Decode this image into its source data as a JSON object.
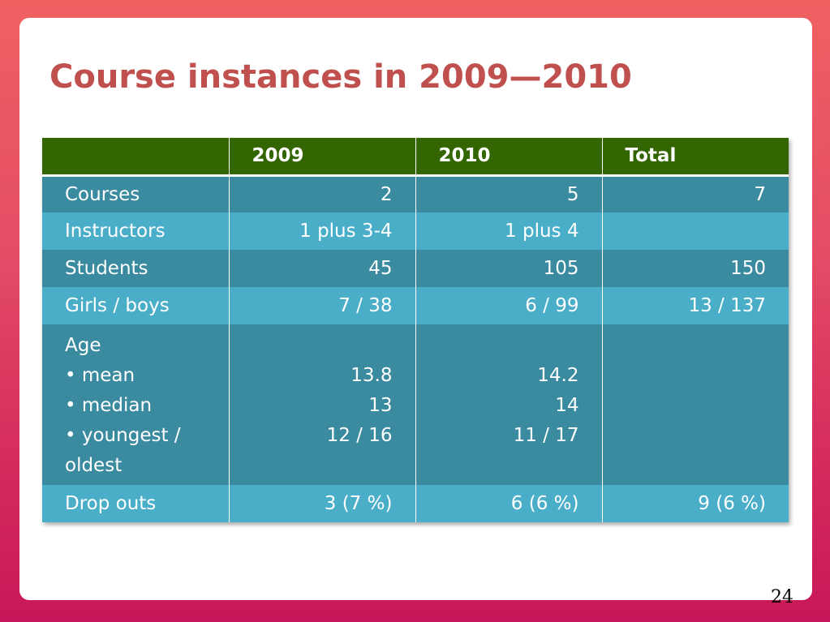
{
  "slide": {
    "title": "Course instances in 2009—2010",
    "page_number": "24"
  },
  "colors": {
    "background_top": "#ef6161",
    "background_bottom": "#c8175a",
    "title": "#c0504d",
    "header_row": "#336600",
    "row_dark": "#3a8aa0",
    "row_light": "#4aaec8"
  },
  "table": {
    "headers": [
      "",
      "2009",
      "2010",
      "Total"
    ],
    "rows": [
      {
        "label": "Courses",
        "y2009": "2",
        "y2010": "5",
        "total": "7"
      },
      {
        "label": "Instructors",
        "y2009": "1 plus 3-4",
        "y2010": "1 plus 4",
        "total": ""
      },
      {
        "label": "Students",
        "y2009": "45",
        "y2010": "105",
        "total": "150"
      },
      {
        "label": "Girls / boys",
        "y2009": "7 / 38",
        "y2010": "6 / 99",
        "total": "13 / 137"
      }
    ],
    "age": {
      "label": "Age",
      "mean_label": "• mean",
      "median_label": "• median",
      "range_label_1": "• youngest /",
      "range_label_2": "oldest",
      "y2009": {
        "mean": "13.8",
        "median": "13",
        "range": "12 / 16"
      },
      "y2010": {
        "mean": "14.2",
        "median": "14",
        "range": "11 / 17"
      },
      "total": ""
    },
    "dropouts": {
      "label": "Drop outs",
      "y2009": "3 (7 %)",
      "y2010": "6 (6 %)",
      "total": "9 (6 %)"
    }
  }
}
